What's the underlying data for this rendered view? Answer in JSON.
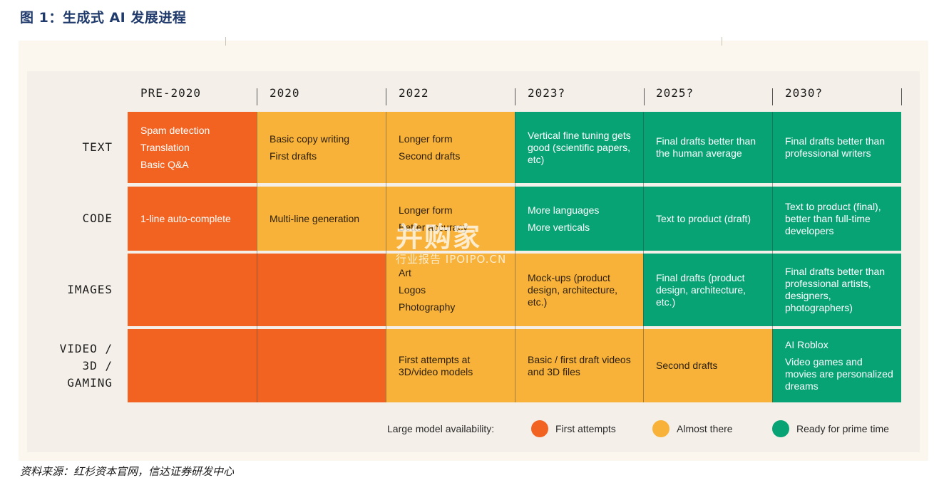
{
  "figure_title": "图 1：生成式 AI 发展进程",
  "columns": [
    "PRE-2020",
    "2020",
    "2022",
    "2023?",
    "2025?",
    "2030?"
  ],
  "rows": [
    {
      "label": "TEXT",
      "cells": [
        {
          "status": "orange",
          "lines": [
            "Spam detection",
            "Translation",
            "Basic Q&A"
          ]
        },
        {
          "status": "yellow",
          "lines": [
            "Basic copy writing",
            "First drafts"
          ]
        },
        {
          "status": "yellow",
          "lines": [
            "Longer form",
            "Second drafts"
          ]
        },
        {
          "status": "green",
          "lines": [
            "Vertical fine tuning gets good (scientific papers, etc)"
          ]
        },
        {
          "status": "green",
          "lines": [
            "Final drafts better than the human average"
          ]
        },
        {
          "status": "green",
          "lines": [
            "Final drafts better than professional writers"
          ]
        }
      ]
    },
    {
      "label": "CODE",
      "cells": [
        {
          "status": "orange",
          "lines": [
            "1-line auto-complete"
          ]
        },
        {
          "status": "yellow",
          "lines": [
            "Multi-line generation"
          ]
        },
        {
          "status": "yellow",
          "lines": [
            "Longer form",
            "Better accuracy"
          ]
        },
        {
          "status": "green",
          "lines": [
            "More languages",
            "More verticals"
          ]
        },
        {
          "status": "green",
          "lines": [
            "Text to product (draft)"
          ]
        },
        {
          "status": "green",
          "lines": [
            "Text to product (final), better than full-time developers"
          ]
        }
      ]
    },
    {
      "label": "IMAGES",
      "cells": [
        {
          "status": "orange",
          "lines": []
        },
        {
          "status": "orange",
          "lines": []
        },
        {
          "status": "yellow",
          "lines": [
            "Art",
            "Logos",
            "Photography"
          ]
        },
        {
          "status": "yellow",
          "lines": [
            "Mock-ups (product design, architecture, etc.)"
          ]
        },
        {
          "status": "green",
          "lines": [
            "Final drafts (product design, architecture, etc.)"
          ]
        },
        {
          "status": "green",
          "lines": [
            "Final drafts better than professional artists, designers, photographers)"
          ]
        }
      ]
    },
    {
      "label": "VIDEO / 3D / GAMING",
      "cells": [
        {
          "status": "orange",
          "lines": []
        },
        {
          "status": "orange",
          "lines": []
        },
        {
          "status": "yellow",
          "lines": [
            "First attempts at 3D/video models"
          ]
        },
        {
          "status": "yellow",
          "lines": [
            "Basic / first draft videos and 3D files"
          ]
        },
        {
          "status": "yellow",
          "lines": [
            "Second drafts"
          ]
        },
        {
          "status": "green",
          "lines": [
            "AI Roblox",
            "Video games and movies are personalized dreams"
          ]
        }
      ]
    }
  ],
  "legend": {
    "title": "Large model availability:",
    "items": [
      {
        "label": "First attempts",
        "color": "#f26322"
      },
      {
        "label": "Almost there",
        "color": "#f8b23a"
      },
      {
        "label": "Ready for prime time",
        "color": "#07a374"
      }
    ]
  },
  "colors": {
    "orange": "#f26322",
    "yellow": "#f8b23a",
    "green": "#07a374"
  },
  "watermark": {
    "main": "并购家",
    "sub": "行业报告 IPOIPO.CN"
  },
  "source": "资料来源：红杉资本官网，信达证券研发中心"
}
